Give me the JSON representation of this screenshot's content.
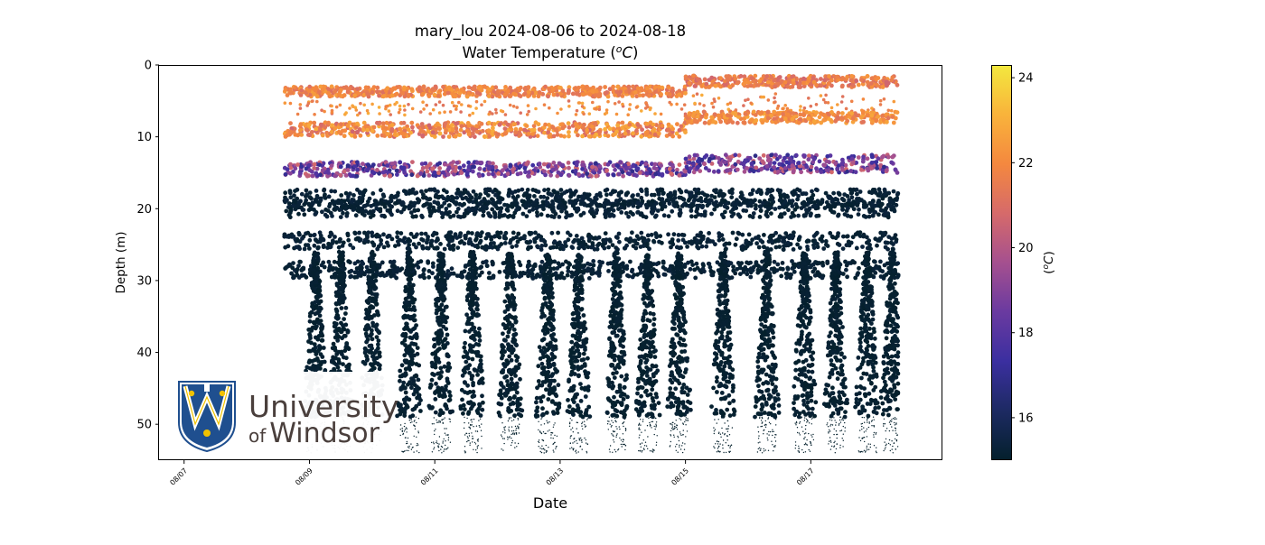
{
  "chart_data": {
    "type": "scatter",
    "title": "mary_lou 2024-08-06 to 2024-08-18",
    "subtitle": "Water Temperature (",
    "subtitle_unit": "oC",
    "subtitle_end": ")",
    "xlabel": "Date",
    "ylabel": "Depth (m)",
    "x_range": [
      "2024-08-06",
      "2024-08-18"
    ],
    "xlim_days": [
      0.6,
      13.1
    ],
    "ylim": [
      55,
      0
    ],
    "y_inverted": true,
    "x_ticks": [
      {
        "day": 1,
        "label": "08/07"
      },
      {
        "day": 3,
        "label": "08/09"
      },
      {
        "day": 5,
        "label": "08/11"
      },
      {
        "day": 7,
        "label": "08/13"
      },
      {
        "day": 9,
        "label": "08/15"
      },
      {
        "day": 11,
        "label": "08/17"
      }
    ],
    "y_ticks": [
      0,
      10,
      20,
      30,
      40,
      50
    ],
    "data_span_days": [
      2.6,
      12.4
    ],
    "colorbar": {
      "label_prefix": "(",
      "label_unit": "oC",
      "label_suffix": ")",
      "range": [
        15.0,
        24.3
      ],
      "ticks": [
        16,
        18,
        20,
        22,
        24
      ],
      "colormap": "thermal",
      "stops": [
        "#04202c",
        "#1d2a63",
        "#3b2fa0",
        "#6a3aa0",
        "#a5508f",
        "#d66a6a",
        "#f4883f",
        "#f9b33b",
        "#f3e83e"
      ]
    },
    "grid": false,
    "legend": "none",
    "series": [
      {
        "depth_band_m": [
          1,
          4
        ],
        "temperature_c": [
          20.5,
          23.5
        ]
      },
      {
        "depth_band_m": [
          6,
          10
        ],
        "temperature_c": [
          20.0,
          23.0
        ]
      },
      {
        "depth_band_m": [
          12,
          16
        ],
        "temperature_c": [
          16.5,
          21.5
        ]
      },
      {
        "depth_band_m": [
          17,
          50
        ],
        "temperature_c": [
          15.0,
          15.4
        ]
      },
      {
        "depth_band_m": [
          50,
          54
        ],
        "temperature_c": [
          15.0,
          15.1
        ]
      }
    ]
  },
  "logo": {
    "line1": "University",
    "line2_prefix": "of",
    "line2_main": "Windsor",
    "colors": {
      "shield_blue": "#1f4f8f",
      "shield_gold": "#f2c200",
      "text": "#4a3f3c"
    }
  },
  "colors": {
    "cold": "#04202c",
    "deep_point": "#0d2733",
    "axis": "#000000"
  }
}
